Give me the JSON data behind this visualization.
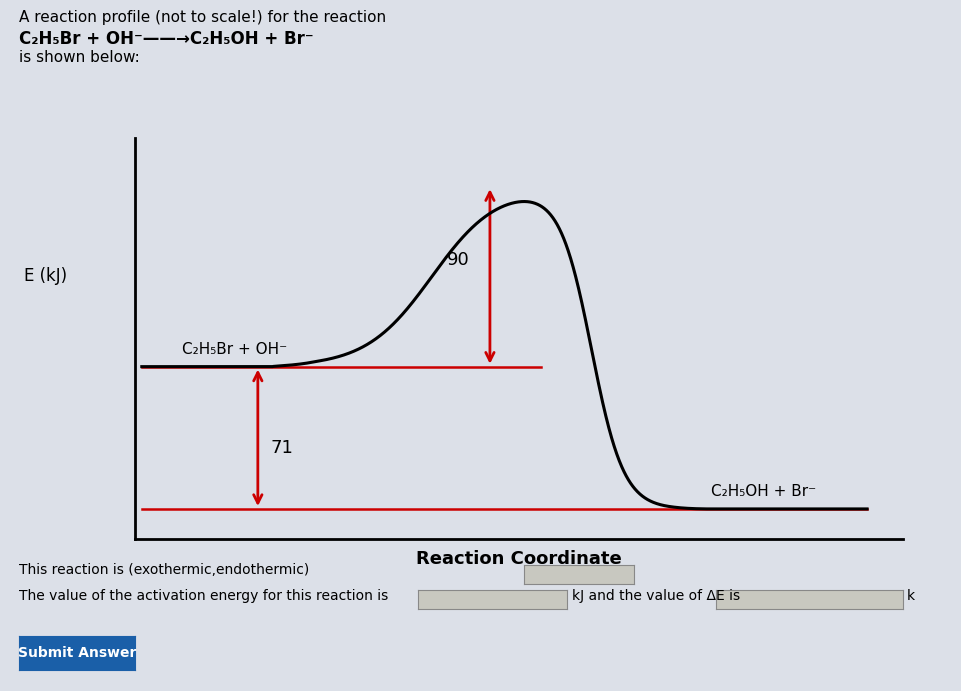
{
  "title_line1": "A reaction profile (not to scale!) for the reaction",
  "title_line2_plain": "C",
  "title_line2": "C₂H₅Br + OH⁻——→C₂H₅OH + Br⁻",
  "title_line3": "is shown below:",
  "ylabel": "E (kJ)",
  "xlabel": "Reaction Coordinate",
  "reactant_label": "C₂H₅Br + OH⁻",
  "product_label": "C₂H₅OH + Br⁻",
  "reactant_energy": 71,
  "product_energy": 0,
  "activation_energy": 90,
  "peak_energy": 161,
  "delta_E": -71,
  "arrow_color": "#cc0000",
  "curve_color": "#000000",
  "line_color": "#cc0000",
  "background_color": "#dce0e8",
  "ax_background_color": "#dce0e8",
  "label_fontsize": 11,
  "axis_label_fontsize": 12,
  "text_color": "#000000",
  "bottom_text_line1": "This reaction is (exothermic,endothermic)",
  "bottom_text_line2": "The value of the activation energy for this reaction is",
  "bottom_text_end": "kJ and the value of ΔE is",
  "submit_button_text": "Submit Answer"
}
